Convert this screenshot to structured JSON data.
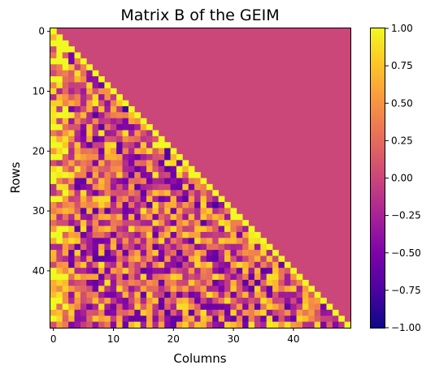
{
  "chart_data": {
    "type": "heatmap",
    "title": "Matrix B of the GEIM",
    "xlabel": "Columns",
    "ylabel": "Rows",
    "n_rows": 50,
    "n_cols": 50,
    "x_ticks": [
      0,
      10,
      20,
      30,
      40
    ],
    "y_ticks": [
      0,
      10,
      20,
      30,
      40
    ],
    "colormap": "plasma",
    "color_range": [
      -1.0,
      1.0
    ],
    "colorbar_ticks": [
      1.0,
      0.75,
      0.5,
      0.25,
      0.0,
      -0.25,
      -0.5,
      -0.75,
      -1.0
    ],
    "colorbar_labels": [
      "1.00",
      "0.75",
      "0.50",
      "0.25",
      "0.00",
      "−0.25",
      "−0.50",
      "−0.75",
      "−1.00"
    ],
    "structure": "lower-triangular; diagonal = 1.00; upper triangle = 0.00; entries below the diagonal vary between -1.00 and 1.00"
  }
}
